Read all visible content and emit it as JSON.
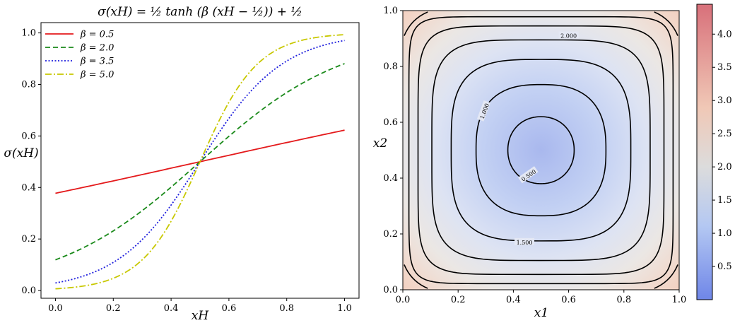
{
  "chart_data": [
    {
      "type": "line",
      "title": "σ(xH) = ½ tanh (β (xH − ½)) + ½",
      "xlabel": "xH",
      "ylabel": "σ(xH)",
      "xlim": [
        -0.05,
        1.05
      ],
      "ylim": [
        -0.03,
        1.04
      ],
      "xticks": [
        "0.0",
        "0.2",
        "0.4",
        "0.6",
        "0.8",
        "1.0"
      ],
      "yticks": [
        "0.0",
        "0.2",
        "0.4",
        "0.6",
        "0.8",
        "1.0"
      ],
      "legend_position": "top-left",
      "grid": false,
      "series": [
        {
          "name": "β = 0.5",
          "beta": 0.5,
          "color": "#e41a1c",
          "style": "solid",
          "x": [
            0.0,
            0.5,
            1.0
          ],
          "y": [
            0.376,
            0.5,
            0.624
          ]
        },
        {
          "name": "β = 2.0",
          "beta": 2.0,
          "color": "#1a8a1a",
          "style": "dashed",
          "x": [
            0.0,
            0.25,
            0.5,
            0.75,
            1.0
          ],
          "y": [
            0.119,
            0.269,
            0.5,
            0.731,
            0.881
          ]
        },
        {
          "name": "β = 3.5",
          "beta": 3.5,
          "color": "#1f1fdd",
          "style": "dotted",
          "x": [
            0.0,
            0.25,
            0.5,
            0.75,
            1.0
          ],
          "y": [
            0.029,
            0.148,
            0.5,
            0.852,
            0.971
          ]
        },
        {
          "name": "β = 5.0",
          "beta": 5.0,
          "color": "#c8c800",
          "style": "dashdot",
          "x": [
            0.0,
            0.25,
            0.5,
            0.75,
            1.0
          ],
          "y": [
            0.007,
            0.076,
            0.5,
            0.924,
            0.993
          ]
        }
      ]
    },
    {
      "type": "heatmap",
      "title": "",
      "xlabel": "x1",
      "ylabel": "x2",
      "xlim": [
        0.0,
        1.0
      ],
      "ylim": [
        0.0,
        1.0
      ],
      "xticks": [
        "0.0",
        "0.2",
        "0.4",
        "0.6",
        "0.8",
        "1.0"
      ],
      "yticks": [
        "0.0",
        "0.2",
        "0.4",
        "0.6",
        "0.8",
        "1.0"
      ],
      "colormap": "coolwarm",
      "colorbar_range": [
        0.0,
        4.45
      ],
      "colorbar_ticks": [
        "0.5",
        "1.0",
        "1.5",
        "2.0",
        "2.5",
        "3.0",
        "3.5",
        "4.0"
      ],
      "contour_levels": [
        0.5,
        1.0,
        1.5,
        2.0,
        2.5,
        3.0,
        3.5,
        4.0
      ],
      "contour_labels": [
        "0.500",
        "1.000",
        "1.500",
        "2.000"
      ],
      "minimum_at": [
        0.5,
        0.5
      ]
    }
  ]
}
